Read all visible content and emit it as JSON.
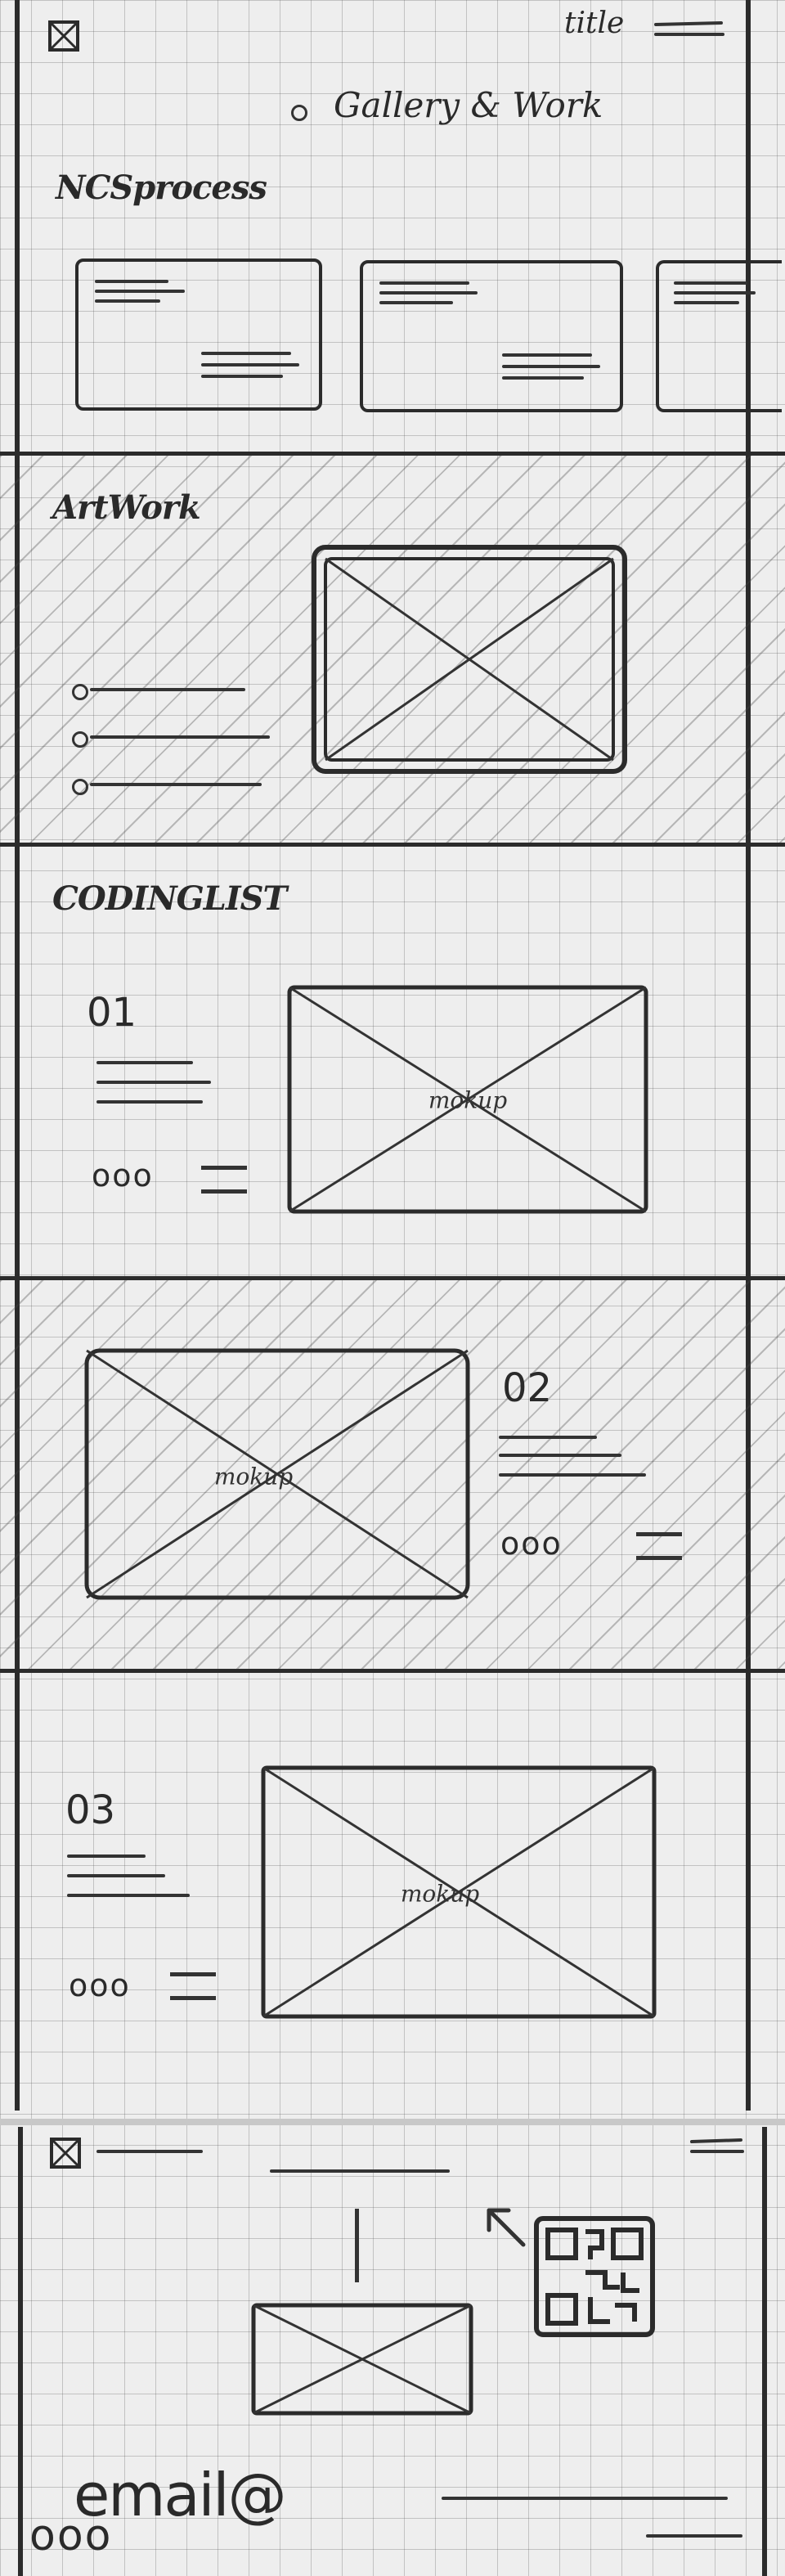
{
  "header": {
    "title": "title",
    "nav_label": "Gallery & Work"
  },
  "sections": {
    "process": {
      "title": "NCSprocess"
    },
    "artwork": {
      "title": "ArtWork"
    },
    "coding": {
      "title": "CODINGLIST",
      "items": [
        {
          "number": "01",
          "image_caption": "mokup",
          "dots": "ooo"
        },
        {
          "number": "02",
          "image_caption": "mokup",
          "dots": "ooo"
        },
        {
          "number": "03",
          "image_caption": "mokup",
          "dots": "ooo"
        }
      ]
    }
  },
  "footer": {
    "contact_text": "email@",
    "dots": "ooo"
  }
}
